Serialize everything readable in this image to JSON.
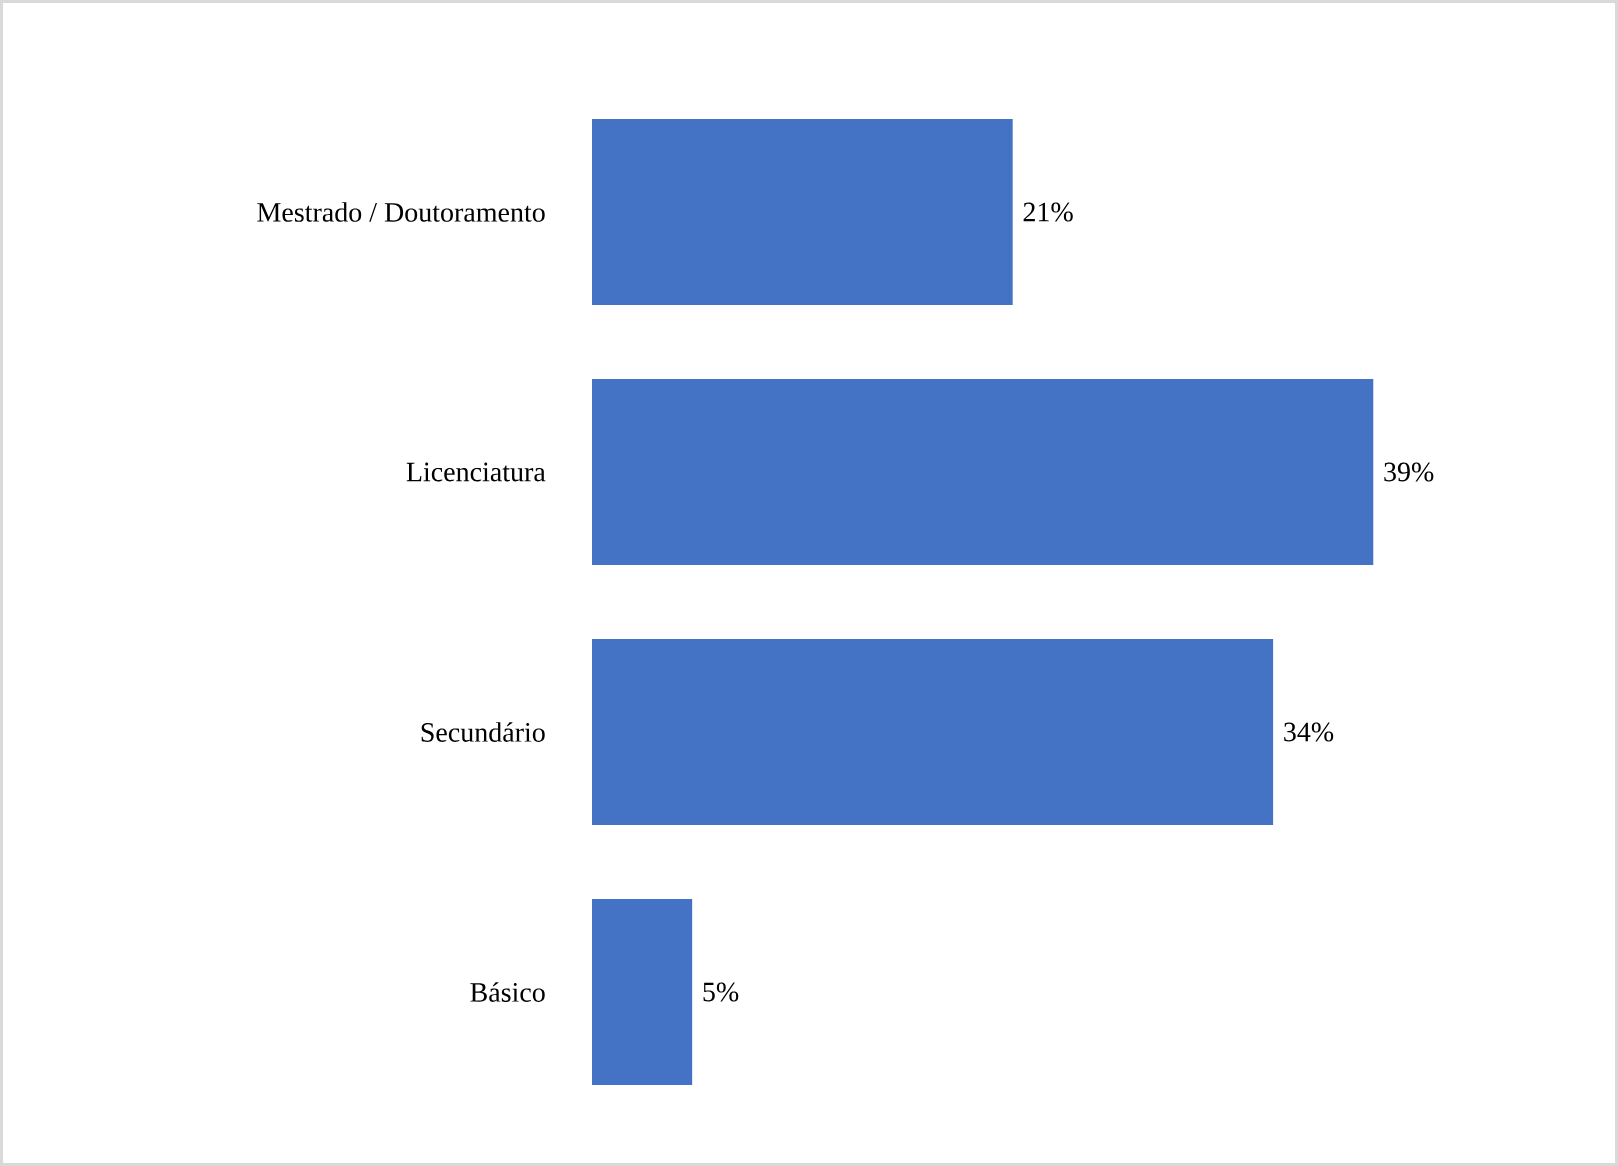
{
  "chart_data": {
    "type": "bar",
    "orientation": "horizontal",
    "categories": [
      "Mestrado / Doutoramento",
      "Licenciatura",
      "Secundário",
      "Básico"
    ],
    "values": [
      21,
      39,
      34,
      5
    ],
    "value_labels": [
      "21%",
      "39%",
      "34%",
      "5%"
    ],
    "color": "#4472c4"
  }
}
